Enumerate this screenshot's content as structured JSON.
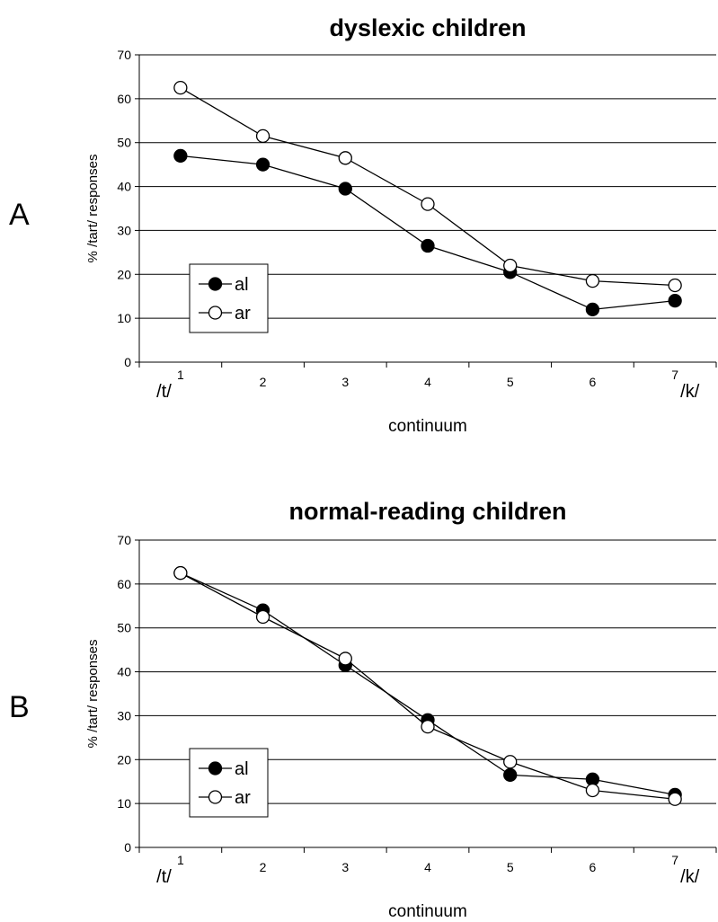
{
  "chart_data": [
    {
      "type": "line",
      "panel_label": "A",
      "title": "dyslexic children",
      "xlabel": "continuum",
      "ylabel": "% /tart/ responses",
      "x": [
        1,
        2,
        3,
        4,
        5,
        6,
        7
      ],
      "x_tick_labels": [
        "1",
        "2",
        "3",
        "4",
        "5",
        "6",
        "7"
      ],
      "x_start_label": "/t/",
      "x_end_label": "/k/",
      "y_ticks": [
        "0",
        "10",
        "20",
        "30",
        "40",
        "50",
        "60",
        "70"
      ],
      "ylim": [
        0,
        70
      ],
      "grid": "horizontal",
      "legend_position": "bottom-left",
      "series": [
        {
          "name": "al",
          "marker": "filled-circle",
          "color": "#000000",
          "values": [
            47,
            45,
            39.5,
            26.5,
            20.5,
            12,
            14
          ]
        },
        {
          "name": "ar",
          "marker": "open-circle",
          "color": "#000000",
          "values": [
            62.5,
            51.5,
            46.5,
            36,
            22,
            18.5,
            17.5
          ]
        }
      ]
    },
    {
      "type": "line",
      "panel_label": "B",
      "title": "normal-reading children",
      "xlabel": "continuum",
      "ylabel": "% /tart/ responses",
      "x": [
        1,
        2,
        3,
        4,
        5,
        6,
        7
      ],
      "x_tick_labels": [
        "1",
        "2",
        "3",
        "4",
        "5",
        "6",
        "7"
      ],
      "x_start_label": "/t/",
      "x_end_label": "/k/",
      "y_ticks": [
        "0",
        "10",
        "20",
        "30",
        "40",
        "50",
        "60",
        "70"
      ],
      "ylim": [
        0,
        70
      ],
      "grid": "horizontal",
      "legend_position": "bottom-left",
      "series": [
        {
          "name": "al",
          "marker": "filled-circle",
          "color": "#000000",
          "values": [
            62.5,
            54,
            41.5,
            29,
            16.5,
            15.5,
            12
          ]
        },
        {
          "name": "ar",
          "marker": "open-circle",
          "color": "#000000",
          "values": [
            62.5,
            52.5,
            43,
            27.5,
            19.5,
            13,
            11
          ]
        }
      ]
    }
  ]
}
